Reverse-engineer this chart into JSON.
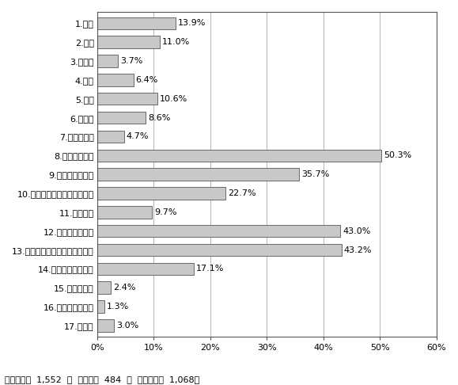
{
  "categories": [
    "1.住宅",
    "2.店舗",
    "3.事務所",
    "4.工場",
    "5.倉庫",
    "6.駐車場",
    "7.資材置き場",
    "8.公園･広場等",
    "9.学校･文化施設",
    "10.集会所等コミュニティ施設",
    "11.娯楽施設",
    "12.病院･医療施設",
    "13.高齢者･障害者等の福祉施設",
    "14.市場等の流通施設",
    "15.基地･霊園",
    "16.廃棄物処理施設",
    "17.その他"
  ],
  "values": [
    13.9,
    11.0,
    3.7,
    6.4,
    10.6,
    8.6,
    4.7,
    50.3,
    35.7,
    22.7,
    9.7,
    43.0,
    43.2,
    17.1,
    2.4,
    1.3,
    3.0
  ],
  "bar_color": "#c8c8c8",
  "bar_edge_color": "#555555",
  "xlim": [
    0,
    60
  ],
  "xticks": [
    0,
    10,
    20,
    30,
    40,
    50,
    60
  ],
  "xticklabels": [
    "0%",
    "10%",
    "20%",
    "30%",
    "40%",
    "50%",
    "60%"
  ],
  "footnote": "》対象者数  1,552  ／  不明者数  484  ／  有効回答数  1,068《",
  "footnote2": "【対象者数  1,552  ／  不明者数  484  ／  有効回答数  1,068】",
  "bar_height": 0.65,
  "background_color": "#ffffff",
  "label_fontsize": 8.0,
  "value_fontsize": 8.0,
  "footnote_fontsize": 8.0,
  "grid_color": "#aaaaaa",
  "spine_color": "#555555"
}
